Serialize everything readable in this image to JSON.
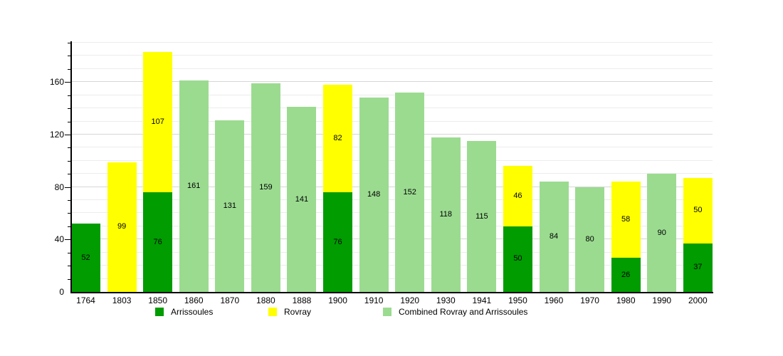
{
  "chart_data": {
    "type": "bar",
    "stacked": true,
    "title": "",
    "xlabel": "",
    "ylabel": "",
    "categories": [
      "1764",
      "1803",
      "1850",
      "1860",
      "1870",
      "1880",
      "1888",
      "1900",
      "1910",
      "1920",
      "1930",
      "1941",
      "1950",
      "1960",
      "1970",
      "1980",
      "1990",
      "2000"
    ],
    "series": [
      {
        "name": "Arrissoules",
        "color": "#009C00",
        "values": [
          52,
          null,
          76,
          null,
          null,
          null,
          null,
          76,
          null,
          null,
          null,
          null,
          50,
          null,
          null,
          26,
          null,
          37
        ]
      },
      {
        "name": "Rovray",
        "color": "#FFFF00",
        "values": [
          null,
          99,
          107,
          null,
          null,
          null,
          null,
          82,
          null,
          null,
          null,
          null,
          46,
          null,
          null,
          58,
          null,
          50
        ]
      },
      {
        "name": "Combined Rovray and Arrissoules",
        "color": "#9BDB90",
        "values": [
          null,
          null,
          null,
          161,
          131,
          159,
          141,
          null,
          148,
          152,
          118,
          115,
          null,
          84,
          80,
          null,
          90,
          null
        ]
      }
    ],
    "ylim": [
      0,
      190
    ],
    "yticks": [
      0,
      40,
      80,
      120,
      160
    ],
    "grid_step": 10,
    "grid": true,
    "legend_position": "bottom",
    "bar_value_labels_shown": true,
    "axis_color": "#000000",
    "gridline_minor_color": "#ECECEC",
    "gridline_major_color": "#D6D6D6"
  }
}
